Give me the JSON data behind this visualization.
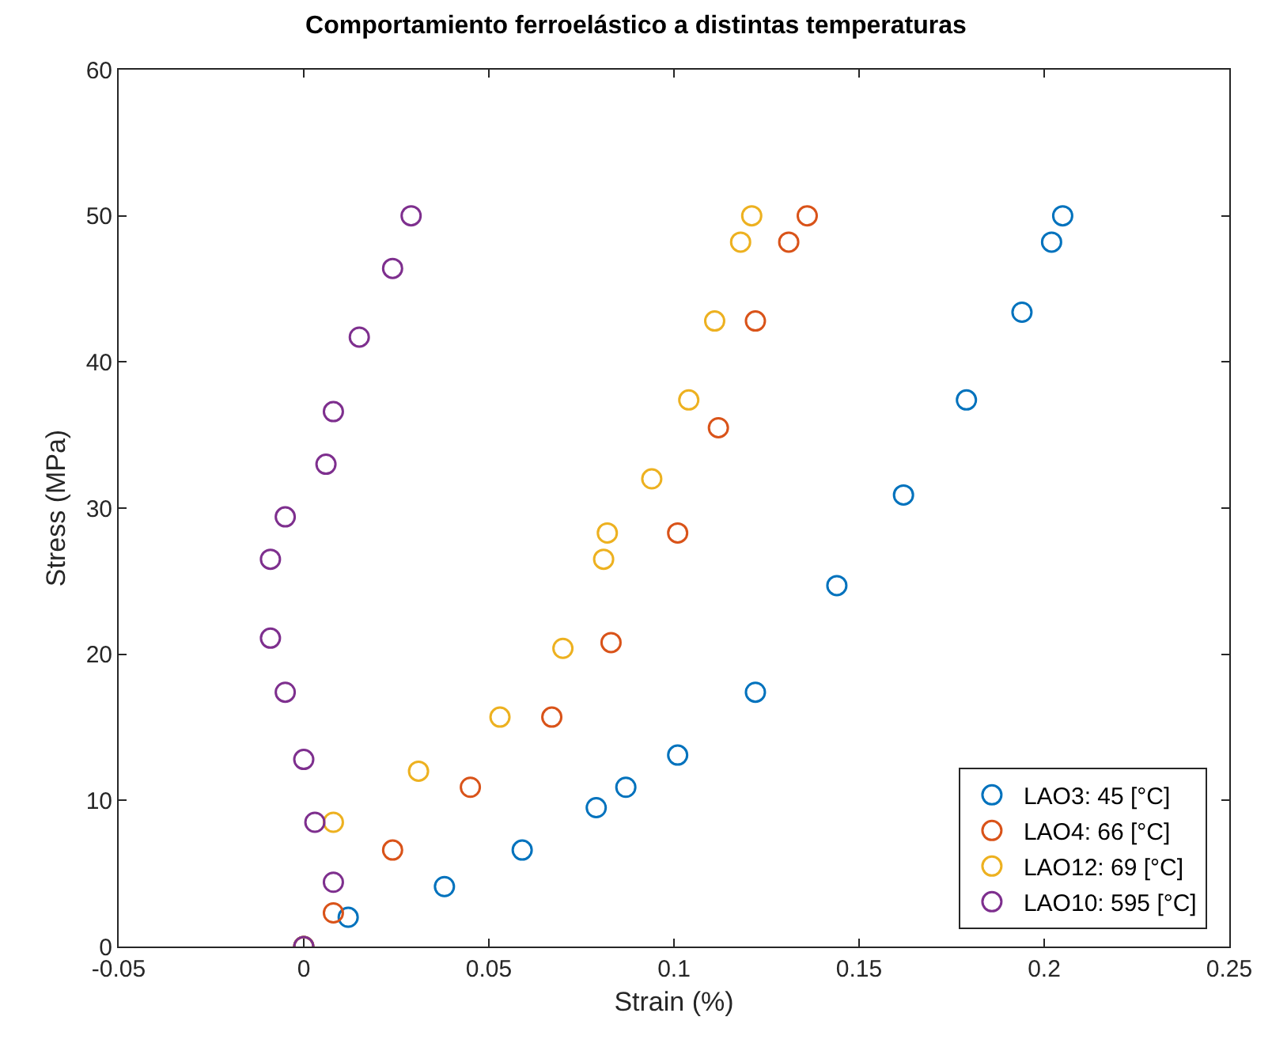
{
  "chart_data": {
    "type": "scatter",
    "title": "Comportamiento ferroelástico a distintas temperaturas",
    "xlabel": "Strain (%)",
    "ylabel": "Stress (MPa)",
    "xlim": [
      -0.05,
      0.25
    ],
    "xticks": [
      -0.05,
      0,
      0.05,
      0.1,
      0.15,
      0.2,
      0.25
    ],
    "ylim": [
      0,
      60
    ],
    "yticks": [
      0,
      10,
      20,
      30,
      40,
      50,
      60
    ],
    "grid": false,
    "legend": "bottom right",
    "marker": "circle",
    "series": [
      {
        "name": "LAO3: 45 [°C]",
        "color": "#0072bd",
        "x": [
          0,
          0.012,
          0.038,
          0.059,
          0.079,
          0.087,
          0.101,
          0.122,
          0.144,
          0.162,
          0.179,
          0.194,
          0.202,
          0.205
        ],
        "values": [
          0,
          2,
          4.1,
          6.6,
          9.5,
          10.9,
          13.1,
          17.4,
          24.7,
          30.9,
          37.4,
          43.4,
          48.2,
          50
        ]
      },
      {
        "name": "LAO4: 66 [°C]",
        "color": "#d95319",
        "x": [
          0,
          0.008,
          0.024,
          0.045,
          0.067,
          0.083,
          0.101,
          0.112,
          0.122,
          0.131,
          0.136
        ],
        "values": [
          0,
          2.3,
          6.6,
          10.9,
          15.7,
          20.8,
          28.3,
          35.5,
          42.8,
          48.2,
          50
        ]
      },
      {
        "name": "LAO12: 69 [°C]",
        "color": "#edb120",
        "x": [
          0,
          0.008,
          0.031,
          0.053,
          0.07,
          0.081,
          0.082,
          0.094,
          0.104,
          0.111,
          0.118,
          0.121
        ],
        "values": [
          0,
          8.5,
          12,
          15.7,
          20.4,
          26.5,
          28.3,
          32,
          37.4,
          42.8,
          48.2,
          50
        ]
      },
      {
        "name": "LAO10: 595 [°C]",
        "color": "#7e2f8e",
        "x": [
          0,
          0.008,
          0.003,
          0,
          -0.005,
          -0.009,
          -0.009,
          -0.005,
          0.006,
          0.008,
          0.015,
          0.024,
          0.029
        ],
        "values": [
          0,
          4.4,
          8.5,
          12.8,
          17.4,
          21.1,
          26.5,
          29.4,
          33,
          36.6,
          41.7,
          46.4,
          50
        ]
      }
    ]
  }
}
